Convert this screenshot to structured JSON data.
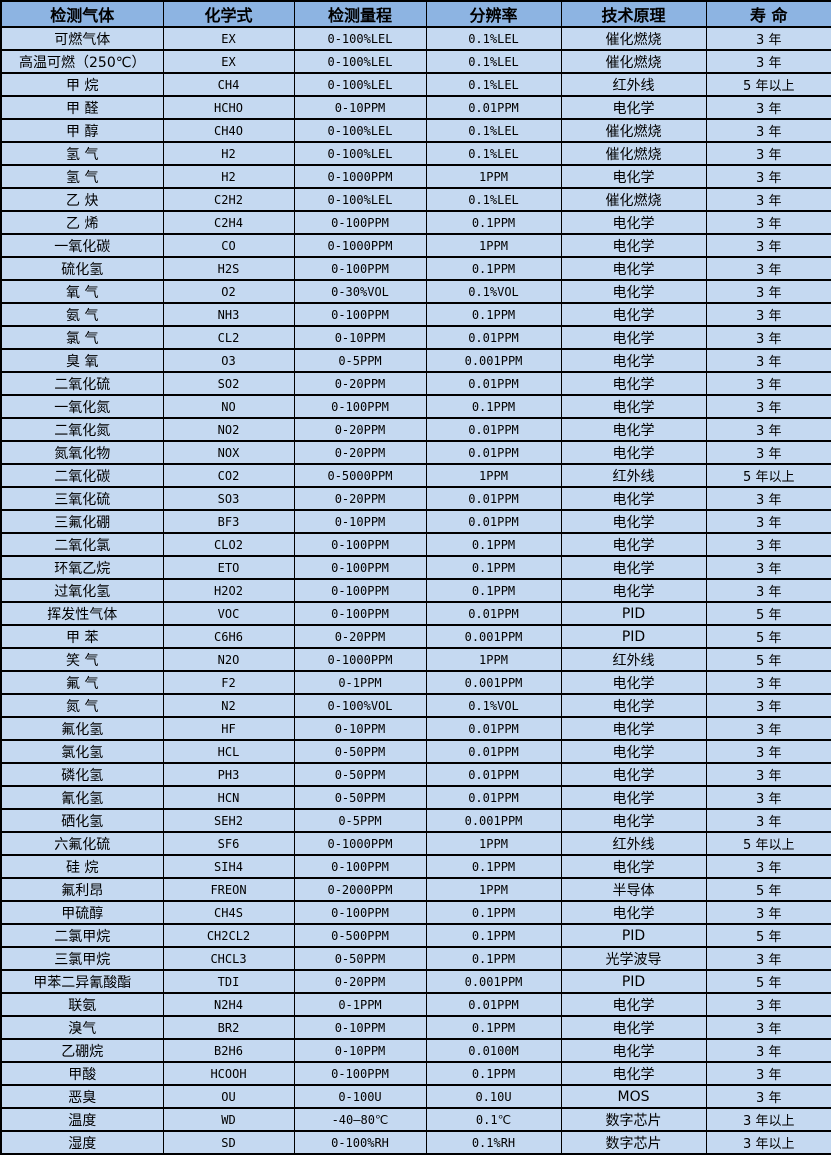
{
  "colors": {
    "header_bg": "#8DB4E2",
    "row_bg": "#C5D9F1",
    "border": "#000000",
    "text": "#000000"
  },
  "table": {
    "columns": [
      "检测气体",
      "化学式",
      "检测量程",
      "分辨率",
      "技术原理",
      "寿 命"
    ],
    "rows": [
      [
        "可燃气体",
        "EX",
        "0-100%LEL",
        "0.1%LEL",
        "催化燃烧",
        "3 年"
      ],
      [
        "高温可燃（250℃）",
        "EX",
        "0-100%LEL",
        "0.1%LEL",
        "催化燃烧",
        "3 年"
      ],
      [
        "甲 烷",
        "CH4",
        "0-100%LEL",
        "0.1%LEL",
        "红外线",
        "5 年以上"
      ],
      [
        "甲 醛",
        "HCHO",
        "0-10PPM",
        "0.01PPM",
        "电化学",
        "3 年"
      ],
      [
        "甲 醇",
        "CH4O",
        "0-100%LEL",
        "0.1%LEL",
        "催化燃烧",
        "3 年"
      ],
      [
        "氢 气",
        "H2",
        "0-100%LEL",
        "0.1%LEL",
        "催化燃烧",
        "3 年"
      ],
      [
        "氢 气",
        "H2",
        "0-1000PPM",
        "1PPM",
        "电化学",
        "3 年"
      ],
      [
        "乙 炔",
        "C2H2",
        "0-100%LEL",
        "0.1%LEL",
        "催化燃烧",
        "3 年"
      ],
      [
        "乙 烯",
        "C2H4",
        "0-100PPM",
        "0.1PPM",
        "电化学",
        "3 年"
      ],
      [
        "一氧化碳",
        "CO",
        "0-1000PPM",
        "1PPM",
        "电化学",
        "3 年"
      ],
      [
        "硫化氢",
        "H2S",
        "0-100PPM",
        "0.1PPM",
        "电化学",
        "3 年"
      ],
      [
        "氧 气",
        "O2",
        "0-30%VOL",
        "0.1%VOL",
        "电化学",
        "3 年"
      ],
      [
        "氨 气",
        "NH3",
        "0-100PPM",
        "0.1PPM",
        "电化学",
        "3 年"
      ],
      [
        "氯 气",
        "CL2",
        "0-10PPM",
        "0.01PPM",
        "电化学",
        "3 年"
      ],
      [
        "臭 氧",
        "O3",
        "0-5PPM",
        "0.001PPM",
        "电化学",
        "3 年"
      ],
      [
        "二氧化硫",
        "SO2",
        "0-20PPM",
        "0.01PPM",
        "电化学",
        "3 年"
      ],
      [
        "一氧化氮",
        "NO",
        "0-100PPM",
        "0.1PPM",
        "电化学",
        "3 年"
      ],
      [
        "二氧化氮",
        "NO2",
        "0-20PPM",
        "0.01PPM",
        "电化学",
        "3 年"
      ],
      [
        "氮氧化物",
        "NOX",
        "0-20PPM",
        "0.01PPM",
        "电化学",
        "3 年"
      ],
      [
        "二氧化碳",
        "CO2",
        "0-5000PPM",
        "1PPM",
        "红外线",
        "5 年以上"
      ],
      [
        "三氧化硫",
        "SO3",
        "0-20PPM",
        "0.01PPM",
        "电化学",
        "3 年"
      ],
      [
        "三氟化硼",
        "BF3",
        "0-10PPM",
        "0.01PPM",
        "电化学",
        "3 年"
      ],
      [
        "二氧化氯",
        "CLO2",
        "0-100PPM",
        "0.1PPM",
        "电化学",
        "3 年"
      ],
      [
        "环氧乙烷",
        "ETO",
        "0-100PPM",
        "0.1PPM",
        "电化学",
        "3 年"
      ],
      [
        "过氧化氢",
        "H2O2",
        "0-100PPM",
        "0.1PPM",
        "电化学",
        "3 年"
      ],
      [
        "挥发性气体",
        "VOC",
        "0-100PPM",
        "0.01PPM",
        "PID",
        "5 年"
      ],
      [
        "甲 苯",
        "C6H6",
        "0-20PPM",
        "0.001PPM",
        "PID",
        "5 年"
      ],
      [
        "笑 气",
        "N2O",
        "0-1000PPM",
        "1PPM",
        "红外线",
        "5 年"
      ],
      [
        "氟 气",
        "F2",
        "0-1PPM",
        "0.001PPM",
        "电化学",
        "3 年"
      ],
      [
        "氮 气",
        "N2",
        "0-100%VOL",
        "0.1%VOL",
        "电化学",
        "3 年"
      ],
      [
        "氟化氢",
        "HF",
        "0-10PPM",
        "0.01PPM",
        "电化学",
        "3 年"
      ],
      [
        "氯化氢",
        "HCL",
        "0-50PPM",
        "0.01PPM",
        "电化学",
        "3 年"
      ],
      [
        "磷化氢",
        "PH3",
        "0-50PPM",
        "0.01PPM",
        "电化学",
        "3 年"
      ],
      [
        "氰化氢",
        "HCN",
        "0-50PPM",
        "0.01PPM",
        "电化学",
        "3 年"
      ],
      [
        "硒化氢",
        "SEH2",
        "0-5PPM",
        "0.001PPM",
        "电化学",
        "3 年"
      ],
      [
        "六氟化硫",
        "SF6",
        "0-1000PPM",
        "1PPM",
        "红外线",
        "5 年以上"
      ],
      [
        "硅 烷",
        "SIH4",
        "0-100PPM",
        "0.1PPM",
        "电化学",
        "3 年"
      ],
      [
        "氟利昂",
        "FREON",
        "0-2000PPM",
        "1PPM",
        "半导体",
        "5 年"
      ],
      [
        "甲硫醇",
        "CH4S",
        "0-100PPM",
        "0.1PPM",
        "电化学",
        "3 年"
      ],
      [
        "二氯甲烷",
        "CH2CL2",
        "0-500PPM",
        "0.1PPM",
        "PID",
        "5 年"
      ],
      [
        "三氯甲烷",
        "CHCL3",
        "0-50PPM",
        "0.1PPM",
        "光学波导",
        "3 年"
      ],
      [
        "甲苯二异氰酸酯",
        "TDI",
        "0-20PPM",
        "0.001PPM",
        "PID",
        "5 年"
      ],
      [
        "联氨",
        "N2H4",
        "0-1PPM",
        "0.01PPM",
        "电化学",
        "3 年"
      ],
      [
        "溴气",
        "BR2",
        "0-10PPM",
        "0.1PPM",
        "电化学",
        "3 年"
      ],
      [
        "乙硼烷",
        "B2H6",
        "0-10PPM",
        "0.0100M",
        "电化学",
        "3 年"
      ],
      [
        "甲酸",
        "HCOOH",
        "0-100PPM",
        "0.1PPM",
        "电化学",
        "3 年"
      ],
      [
        "恶臭",
        "OU",
        "0-100U",
        "0.10U",
        "MOS",
        "3 年"
      ],
      [
        "温度",
        "WD",
        "-40—80℃",
        "0.1℃",
        "数字芯片",
        "3 年以上"
      ],
      [
        "湿度",
        "SD",
        "0-100%RH",
        "0.1%RH",
        "数字芯片",
        "3 年以上"
      ]
    ]
  }
}
